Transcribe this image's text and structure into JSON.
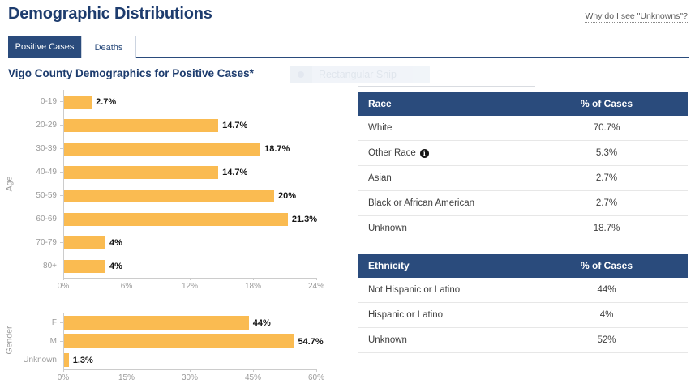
{
  "page": {
    "title": "Demographic Distributions",
    "help_link": "Why do I see \"Unknowns\"?"
  },
  "tabs": [
    {
      "label": "Positive Cases",
      "active": true
    },
    {
      "label": "Deaths",
      "active": false
    }
  ],
  "section": {
    "chart_title": "Vigo County Demographics for Positive Cases*"
  },
  "snip_overlay": {
    "label": "Rectangular Snip"
  },
  "chart_data": [
    {
      "type": "bar",
      "orientation": "horizontal",
      "ylabel": "Age",
      "categories": [
        "0-19",
        "20-29",
        "30-39",
        "40-49",
        "50-59",
        "60-69",
        "70-79",
        "80+"
      ],
      "values": [
        2.7,
        14.7,
        18.7,
        14.7,
        20,
        21.3,
        4,
        4
      ],
      "labels": [
        "2.7%",
        "14.7%",
        "18.7%",
        "14.7%",
        "20%",
        "21.3%",
        "4%",
        "4%"
      ],
      "xticks": [
        "0%",
        "6%",
        "12%",
        "18%",
        "24%"
      ],
      "xlim": [
        0,
        24
      ],
      "grid": false,
      "legend": "none",
      "bar_color": "#FABB51"
    },
    {
      "type": "bar",
      "orientation": "horizontal",
      "ylabel": "Gender",
      "categories": [
        "F",
        "M",
        "Unknown"
      ],
      "values": [
        44,
        54.7,
        1.3
      ],
      "labels": [
        "44%",
        "54.7%",
        "1.3%"
      ],
      "xticks": [
        "0%",
        "15%",
        "30%",
        "45%",
        "60%"
      ],
      "xlim": [
        0,
        60
      ],
      "grid": false,
      "legend": "none",
      "bar_color": "#FABB51"
    }
  ],
  "tables": [
    {
      "header": {
        "name": "Race",
        "value": "% of Cases"
      },
      "rows": [
        {
          "name": "White",
          "value": "70.7%",
          "info": false
        },
        {
          "name": "Other Race",
          "value": "5.3%",
          "info": true
        },
        {
          "name": "Asian",
          "value": "2.7%",
          "info": false
        },
        {
          "name": "Black or African American",
          "value": "2.7%",
          "info": false
        },
        {
          "name": "Unknown",
          "value": "18.7%",
          "info": false
        }
      ]
    },
    {
      "header": {
        "name": "Ethnicity",
        "value": "% of Cases"
      },
      "rows": [
        {
          "name": "Not Hispanic or Latino",
          "value": "44%",
          "info": false
        },
        {
          "name": "Hispanic or Latino",
          "value": "4%",
          "info": false
        },
        {
          "name": "Unknown",
          "value": "52%",
          "info": false
        }
      ]
    }
  ],
  "icons": {
    "info": "info-icon",
    "snip_dot": "snip-dot-icon"
  },
  "colors": {
    "accent_navy": "#2A4B7C",
    "title_navy": "#1D3C6E",
    "bar_orange": "#FABB51",
    "axis_gray": "#CCCCCC",
    "label_gray": "#9A9A9A",
    "row_text": "#404040"
  }
}
